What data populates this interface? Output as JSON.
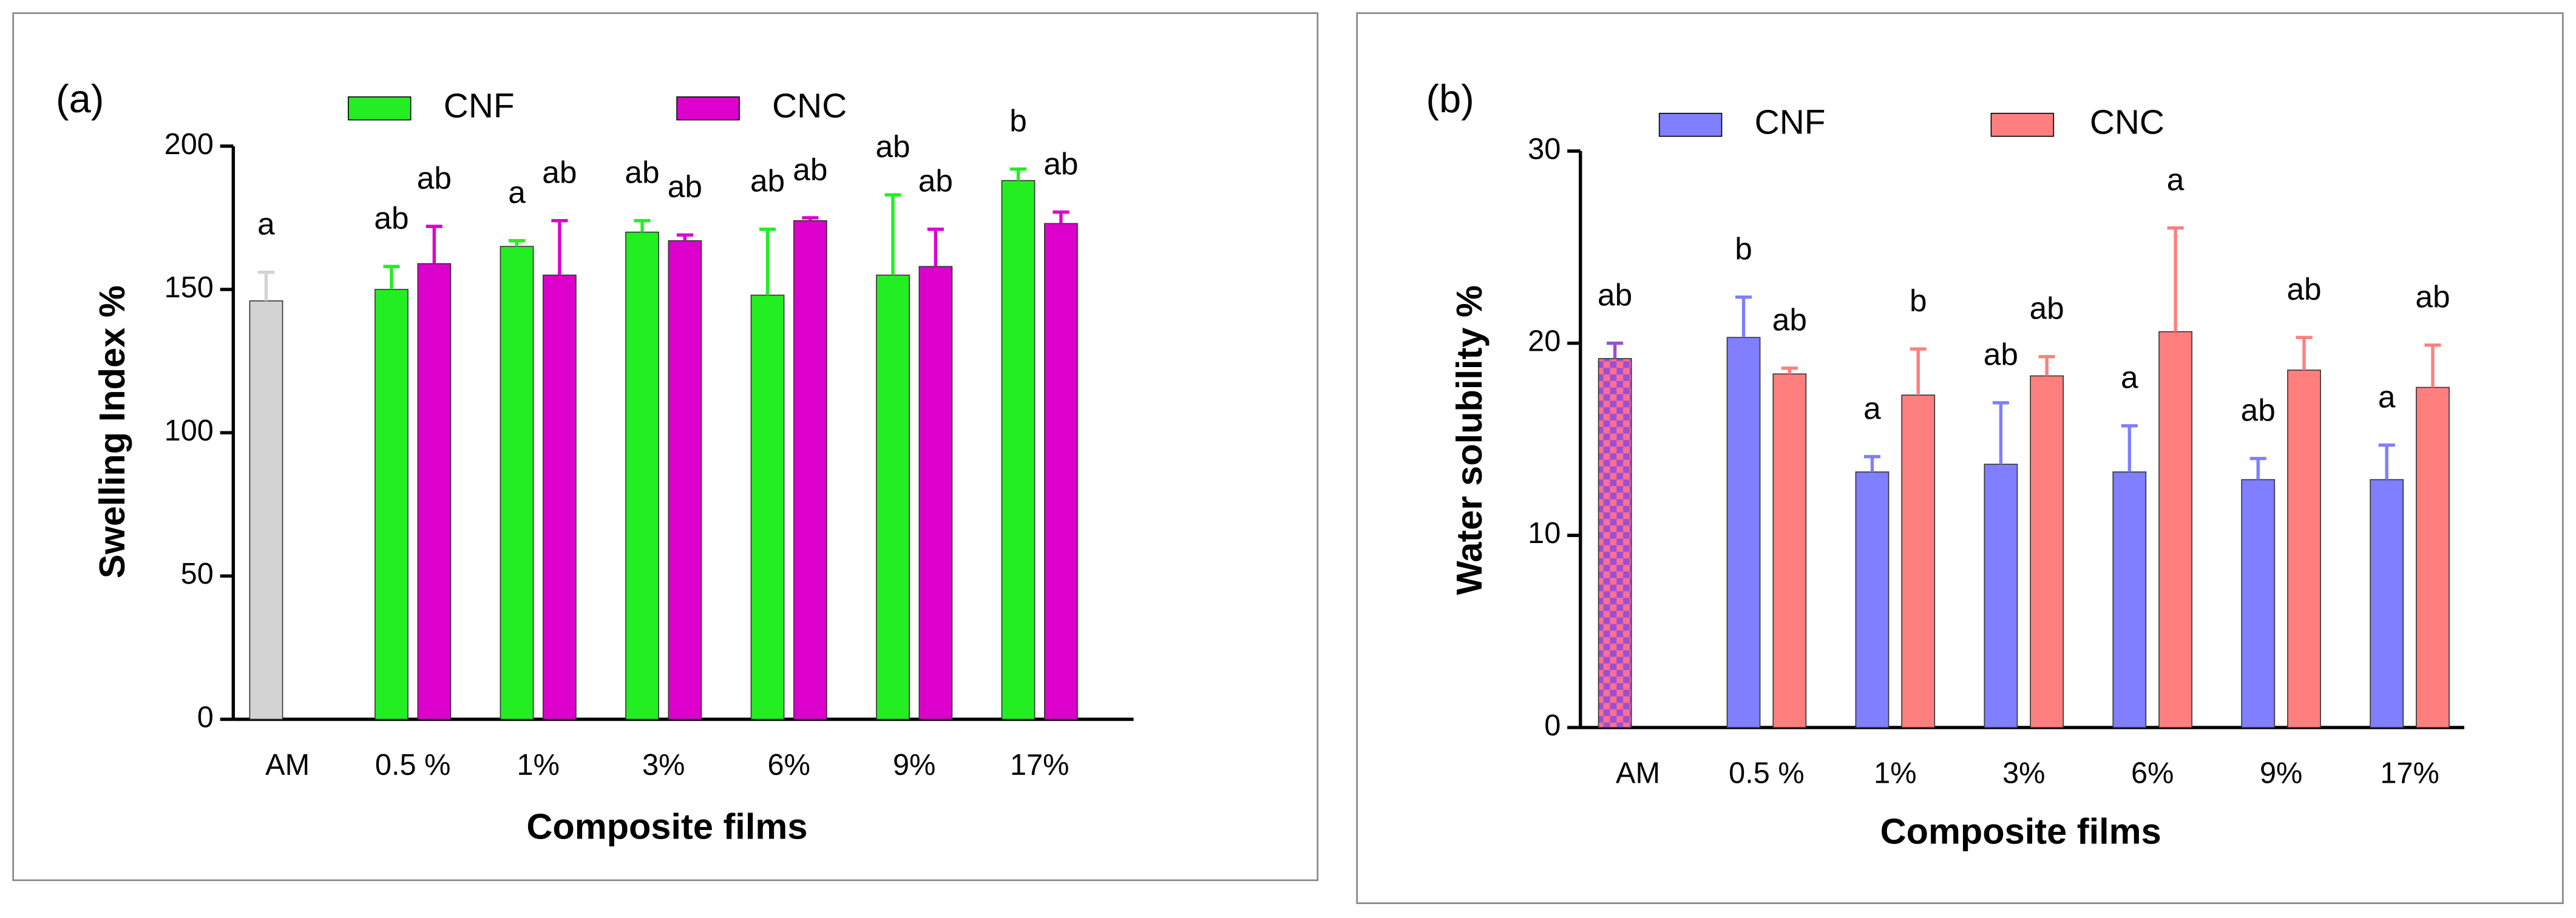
{
  "chart_data": [
    {
      "type": "bar",
      "panel": "(a)",
      "xlabel": "Composite films",
      "ylabel": "Swelling Index %",
      "categories": [
        "AM",
        "0.5 %",
        "1%",
        "3%",
        "6%",
        "9%",
        "17%"
      ],
      "ylim": [
        0,
        200
      ],
      "yticks": [
        0,
        50,
        100,
        150,
        200
      ],
      "series": [
        {
          "name": "CNF",
          "color": "#22ee22",
          "values": [
            null,
            150,
            165,
            170,
            148,
            155,
            188
          ],
          "errors": [
            null,
            8,
            2,
            4,
            23,
            28,
            4
          ],
          "letters": [
            null,
            "ab",
            "a",
            "ab",
            "ab",
            "ab",
            "b"
          ]
        },
        {
          "name": "CNC",
          "color": "#dd00cc",
          "values": [
            null,
            159,
            155,
            167,
            174,
            158,
            173
          ],
          "errors": [
            null,
            13,
            19,
            2,
            1,
            13,
            4
          ],
          "letters": [
            null,
            "ab",
            "ab",
            "ab",
            "ab",
            "ab",
            "ab"
          ]
        },
        {
          "color": "#d3d3d3",
          "values": [
            146,
            null,
            null,
            null,
            null,
            null,
            null
          ],
          "errors": [
            10,
            null,
            null,
            null,
            null,
            null,
            null
          ],
          "letters": [
            "a",
            null,
            null,
            null,
            null,
            null,
            null
          ]
        }
      ]
    },
    {
      "type": "bar",
      "panel": "(b)",
      "xlabel": "Composite films",
      "ylabel": "Water solubility %",
      "categories": [
        "AM",
        "0.5 %",
        "1%",
        "3%",
        "6%",
        "9%",
        "17%"
      ],
      "ylim": [
        0,
        30
      ],
      "yticks": [
        0,
        10,
        20,
        30
      ],
      "series": [
        {
          "name": "CNF",
          "color": "#7f7fff",
          "values": [
            null,
            20.3,
            13.3,
            13.7,
            13.3,
            12.9,
            12.9
          ],
          "errors": [
            null,
            2.1,
            0.8,
            3.2,
            2.4,
            1.1,
            1.8
          ],
          "letters": [
            null,
            "b",
            "a",
            "ab",
            "a",
            "ab",
            "a"
          ]
        },
        {
          "name": "CNC",
          "color": "#ff7f7f",
          "values": [
            null,
            18.4,
            17.3,
            18.3,
            20.6,
            18.6,
            17.7
          ],
          "errors": [
            null,
            0.3,
            2.4,
            1.0,
            5.4,
            1.7,
            2.2
          ],
          "letters": [
            null,
            "ab",
            "b",
            "ab",
            "a",
            "ab",
            "ab"
          ]
        },
        {
          "color": [
            "#9b4fd6",
            "#ff6f8f"
          ],
          "pattern": "checker",
          "values": [
            19.2,
            null,
            null,
            null,
            null,
            null,
            null
          ],
          "errors": [
            0.8,
            null,
            null,
            null,
            null,
            null,
            null
          ],
          "letters": [
            "ab",
            null,
            null,
            null,
            null,
            null,
            null
          ]
        }
      ]
    }
  ]
}
